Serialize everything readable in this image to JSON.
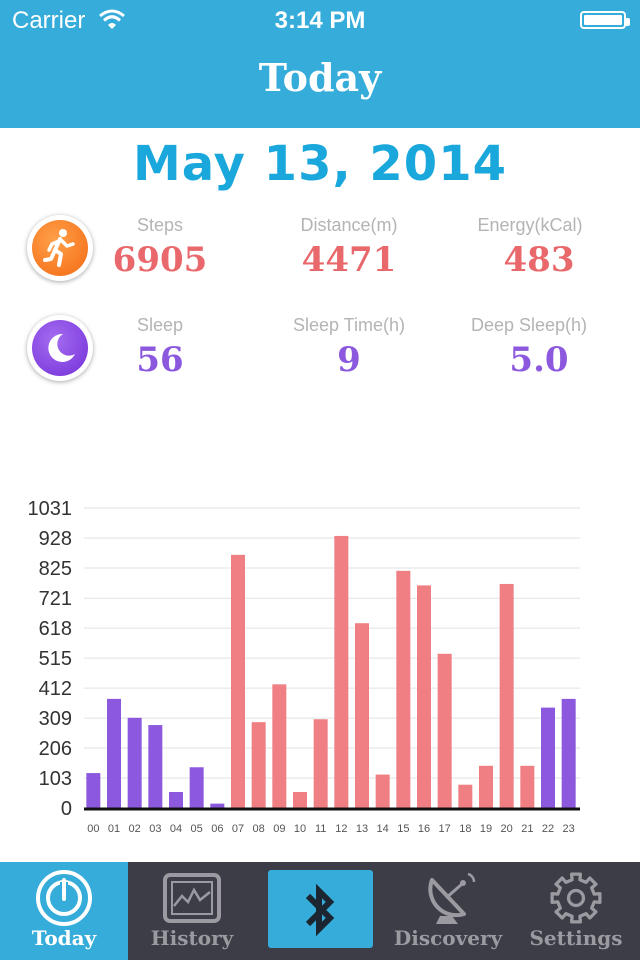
{
  "status_bar": {
    "carrier": "Carrier",
    "time": "3:14 PM"
  },
  "header": {
    "title": "Today"
  },
  "date": "May 13, 2014",
  "activity": {
    "icon": "running-icon",
    "stats": [
      {
        "label": "Steps",
        "value": "6905"
      },
      {
        "label": "Distance(m)",
        "value": "4471"
      },
      {
        "label": "Energy(kCal)",
        "value": "483"
      }
    ]
  },
  "sleep": {
    "icon": "moon-icon",
    "stats": [
      {
        "label": "Sleep",
        "value": "56"
      },
      {
        "label": "Sleep Time(h)",
        "value": "9"
      },
      {
        "label": "Deep Sleep(h)",
        "value": "5.0"
      }
    ]
  },
  "colors": {
    "accent": "#35acd9",
    "step_bar": "#ef7f82",
    "sleep_bar": "#8b58de",
    "tabbar": "#3c3d47"
  },
  "chart_data": {
    "type": "bar",
    "categories": [
      "00",
      "01",
      "02",
      "03",
      "04",
      "05",
      "06",
      "07",
      "08",
      "09",
      "10",
      "11",
      "12",
      "13",
      "14",
      "15",
      "16",
      "17",
      "18",
      "19",
      "20",
      "21",
      "22",
      "23"
    ],
    "values": [
      120,
      375,
      310,
      285,
      55,
      140,
      15,
      870,
      295,
      425,
      55,
      305,
      935,
      635,
      115,
      815,
      765,
      530,
      80,
      145,
      770,
      145,
      345,
      375
    ],
    "bar_types": [
      "sleep",
      "sleep",
      "sleep",
      "sleep",
      "sleep",
      "sleep",
      "sleep",
      "step",
      "step",
      "step",
      "step",
      "step",
      "step",
      "step",
      "step",
      "step",
      "step",
      "step",
      "step",
      "step",
      "step",
      "step",
      "sleep",
      "sleep"
    ],
    "yticks": [
      "0",
      "103",
      "206",
      "309",
      "412",
      "515",
      "618",
      "721",
      "825",
      "928",
      "1031"
    ],
    "ylim": [
      0,
      1031
    ],
    "grid": true
  },
  "tabs": [
    {
      "label": "Today",
      "icon": "power-icon",
      "active": true
    },
    {
      "label": "History",
      "icon": "chart-monitor-icon",
      "active": false
    },
    {
      "label": "",
      "icon": "bluetooth-icon",
      "active": false
    },
    {
      "label": "Discovery",
      "icon": "satellite-dish-icon",
      "active": false
    },
    {
      "label": "Settings",
      "icon": "gear-icon",
      "active": false
    }
  ]
}
